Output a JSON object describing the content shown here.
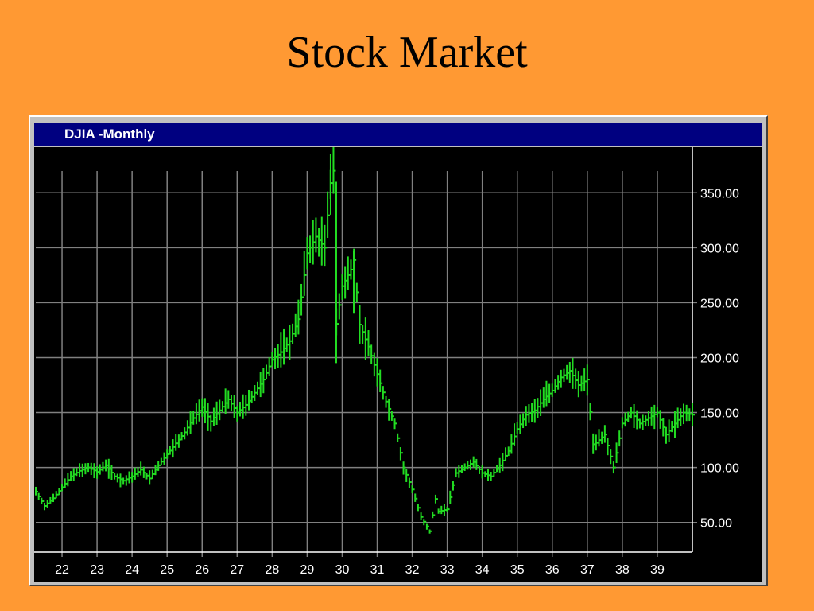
{
  "slide": {
    "title": "Stock Market"
  },
  "window": {
    "title": "DJIA -Monthly"
  },
  "colors": {
    "background": "#FF9933",
    "plot_bg": "#000000",
    "grid": "#808080",
    "price": "#22DD22",
    "titlebar": "#000080"
  },
  "chart_data": {
    "type": "line",
    "title": "DJIA -Monthly",
    "style": "monthly high-low-close bars",
    "xlabel": "",
    "ylabel": "",
    "x_ticks": [
      "22",
      "23",
      "24",
      "25",
      "26",
      "27",
      "28",
      "29",
      "30",
      "31",
      "32",
      "33",
      "34",
      "35",
      "36",
      "37",
      "38",
      "39"
    ],
    "y_ticks": [
      "50.00",
      "100.00",
      "150.00",
      "200.00",
      "250.00",
      "300.00",
      "350.00"
    ],
    "y_tick_values": [
      50,
      100,
      150,
      200,
      250,
      300,
      350
    ],
    "xlim": [
      1921.25,
      1940.0
    ],
    "ylim": [
      23,
      390
    ],
    "grid": true,
    "series": [
      {
        "x": [
          1921.25,
          1921.5,
          1921.75,
          1922.0,
          1922.25,
          1922.5,
          1922.75,
          1923.0,
          1923.25,
          1923.5,
          1923.75,
          1924.0,
          1924.25,
          1924.5,
          1924.75,
          1925.0,
          1925.25,
          1925.5,
          1925.75,
          1926.0,
          1926.25,
          1926.5,
          1926.75,
          1927.0,
          1927.25,
          1927.5,
          1927.75,
          1928.0,
          1928.25,
          1928.5,
          1928.75,
          1929.0,
          1929.25,
          1929.5,
          1929.67,
          1929.75,
          1929.83,
          1930.0,
          1930.25,
          1930.33,
          1930.5,
          1930.75,
          1931.0,
          1931.25,
          1931.5,
          1931.75,
          1932.0,
          1932.25,
          1932.5,
          1932.67,
          1932.75,
          1933.0,
          1933.25,
          1933.5,
          1933.75,
          1934.0,
          1934.25,
          1934.5,
          1934.75,
          1935.0,
          1935.25,
          1935.5,
          1935.75,
          1936.0,
          1936.25,
          1936.5,
          1936.75,
          1937.0,
          1937.17,
          1937.5,
          1937.75,
          1938.0,
          1938.25,
          1938.5,
          1938.75,
          1939.0,
          1939.25,
          1939.5,
          1939.75,
          1940.0
        ],
        "close": [
          78,
          65,
          72,
          82,
          92,
          97,
          100,
          96,
          102,
          92,
          88,
          92,
          98,
          90,
          102,
          112,
          122,
          132,
          145,
          155,
          142,
          152,
          162,
          150,
          157,
          168,
          180,
          198,
          205,
          215,
          235,
          295,
          310,
          300,
          360,
          370,
          230,
          265,
          280,
          290,
          230,
          210,
          185,
          160,
          140,
          100,
          80,
          55,
          42,
          72,
          60,
          62,
          95,
          100,
          105,
          95,
          92,
          102,
          115,
          135,
          148,
          152,
          162,
          170,
          182,
          188,
          175,
          180,
          120,
          130,
          100,
          140,
          150,
          140,
          145,
          150,
          130,
          140,
          150,
          148
        ]
      }
    ]
  }
}
